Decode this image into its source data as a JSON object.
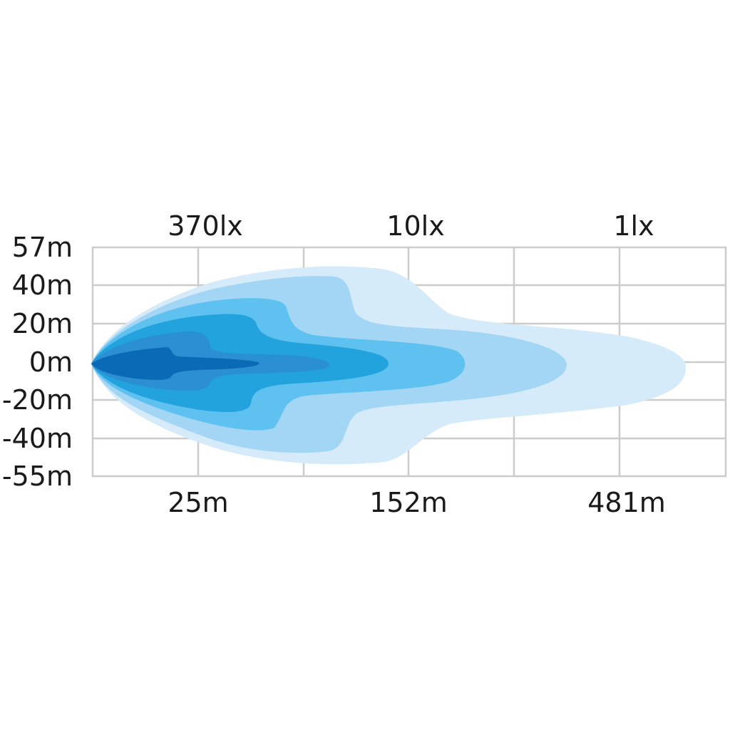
{
  "chart_data": {
    "type": "heatmap",
    "description_free": true,
    "y_tick_labels": [
      "57m",
      "40m",
      "20m",
      "0m",
      "-20m",
      "-40m",
      "-55m"
    ],
    "x_bottom_labels": [
      "25m",
      "152m",
      "481m"
    ],
    "x_top_labels": [
      "370lx",
      "10lx",
      "1lx"
    ],
    "ylim": [
      -55,
      57
    ],
    "grid": true,
    "contour_colors": [
      "#d6ebfa",
      "#a3d5f5",
      "#5ec1ef",
      "#23a3dd",
      "#2b8fd4",
      "#0a6ab5"
    ],
    "grid_color": "#cccccc"
  }
}
